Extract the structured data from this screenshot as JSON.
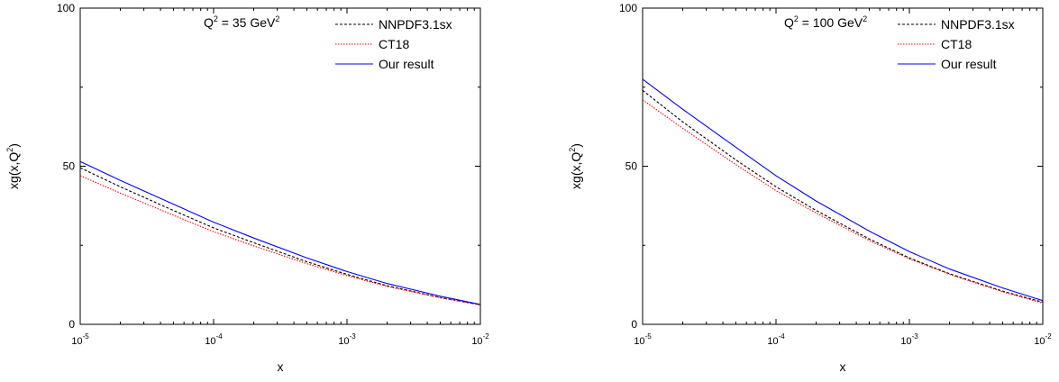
{
  "chart_data": [
    {
      "type": "line",
      "xscale": "log",
      "xlim": [
        1e-05,
        0.01
      ],
      "ylim": [
        0,
        100
      ],
      "xlabel": "x",
      "ylabel": {
        "base": "xg(x,Q",
        "sup": "2",
        "tail": ")"
      },
      "xticks": [
        {
          "value": 1e-05,
          "base": "10",
          "exp": "-5"
        },
        {
          "value": 0.0001,
          "base": "10",
          "exp": "-4"
        },
        {
          "value": 0.001,
          "base": "10",
          "exp": "-3"
        },
        {
          "value": 0.01,
          "base": "10",
          "exp": "-2"
        }
      ],
      "yticks": [
        0,
        50,
        100
      ],
      "annotation": {
        "pre": "Q",
        "sup1": "2",
        "mid": " = 35 GeV",
        "sup2": "2"
      },
      "legend_position": "top-right",
      "x": [
        1e-05,
        2e-05,
        5e-05,
        0.0001,
        0.0002,
        0.0005,
        0.001,
        0.002,
        0.005,
        0.01
      ],
      "series": [
        {
          "name": "NNPDF3.1sx",
          "color": "#000000",
          "style": "dashed",
          "values": [
            49.5,
            43.5,
            36.0,
            30.5,
            25.8,
            19.8,
            15.8,
            12.2,
            8.5,
            6.2
          ]
        },
        {
          "name": "CT18",
          "color": "#ff0000",
          "style": "dotted",
          "values": [
            47.0,
            41.5,
            34.5,
            29.3,
            24.8,
            19.2,
            15.4,
            12.0,
            8.4,
            6.1
          ]
        },
        {
          "name": "Our result",
          "color": "#0000ff",
          "style": "solid",
          "values": [
            51.5,
            45.5,
            38.0,
            32.3,
            27.3,
            21.0,
            16.7,
            12.9,
            8.9,
            6.3
          ]
        }
      ]
    },
    {
      "type": "line",
      "xscale": "log",
      "xlim": [
        1e-05,
        0.01
      ],
      "ylim": [
        0,
        100
      ],
      "xlabel": "x",
      "ylabel": {
        "base": "xg(x,Q",
        "sup": "2",
        "tail": ")"
      },
      "xticks": [
        {
          "value": 1e-05,
          "base": "10",
          "exp": "-5"
        },
        {
          "value": 0.0001,
          "base": "10",
          "exp": "-4"
        },
        {
          "value": 0.001,
          "base": "10",
          "exp": "-3"
        },
        {
          "value": 0.01,
          "base": "10",
          "exp": "-2"
        }
      ],
      "yticks": [
        0,
        50,
        100
      ],
      "annotation": {
        "pre": "Q",
        "sup1": "2",
        "mid": " = 100 GeV",
        "sup2": "2"
      },
      "legend_position": "top-right",
      "x": [
        1e-05,
        2e-05,
        5e-05,
        0.0001,
        0.0002,
        0.0005,
        0.001,
        0.002,
        0.005,
        0.01
      ],
      "series": [
        {
          "name": "NNPDF3.1sx",
          "color": "#000000",
          "style": "dashed",
          "values": [
            74.0,
            64.0,
            52.0,
            43.5,
            36.0,
            27.0,
            21.0,
            16.0,
            10.5,
            7.0
          ]
        },
        {
          "name": "CT18",
          "color": "#ff0000",
          "style": "dotted",
          "values": [
            71.0,
            62.0,
            50.5,
            42.3,
            35.2,
            26.5,
            20.7,
            15.8,
            10.3,
            6.7
          ]
        },
        {
          "name": "Our result",
          "color": "#0000ff",
          "style": "solid",
          "values": [
            77.5,
            68.0,
            56.0,
            47.0,
            39.0,
            29.5,
            23.0,
            17.5,
            11.5,
            7.5
          ]
        }
      ]
    }
  ]
}
